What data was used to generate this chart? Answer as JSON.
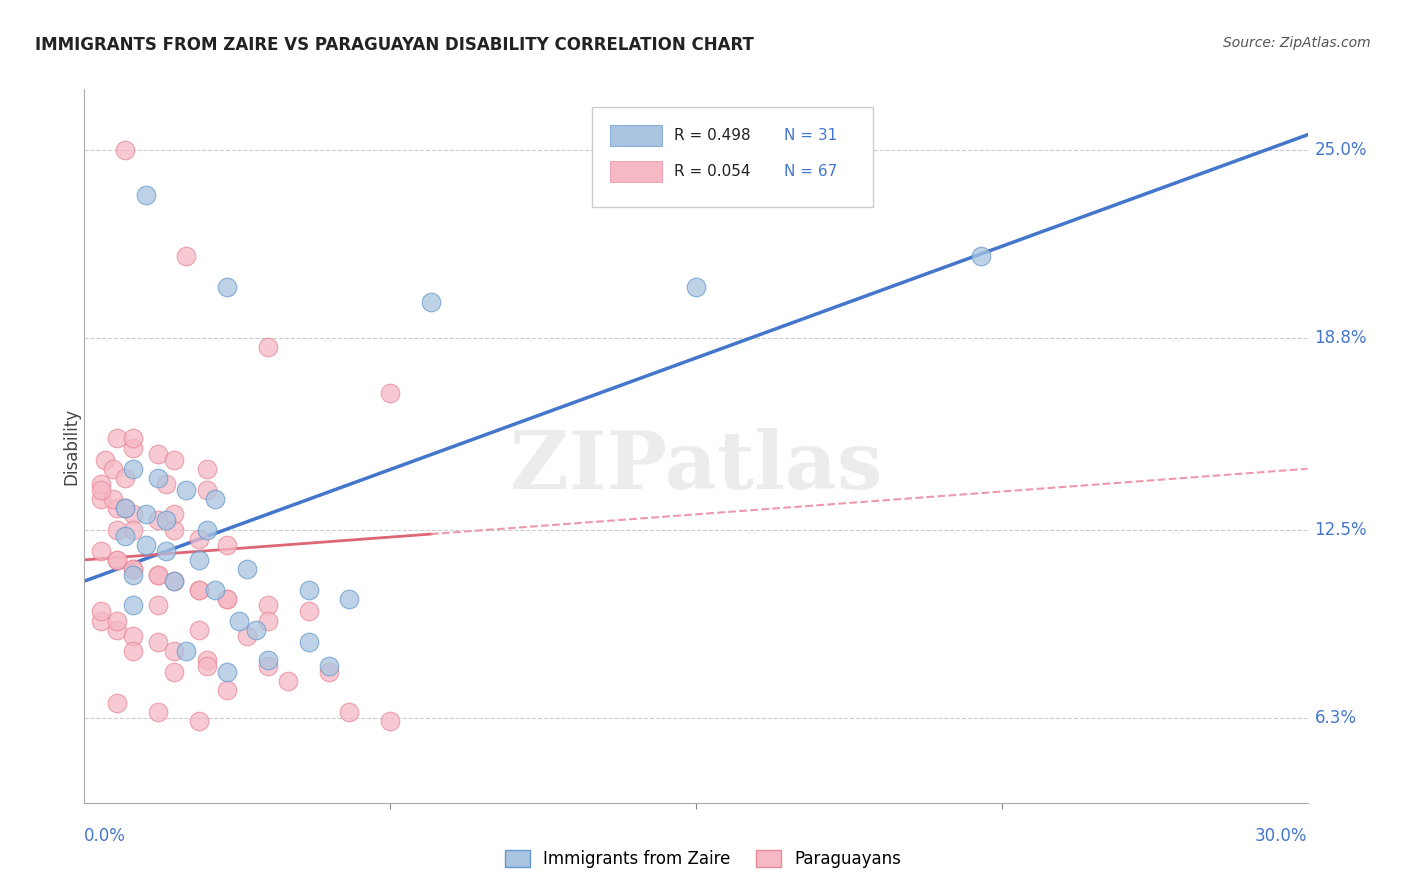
{
  "title": "IMMIGRANTS FROM ZAIRE VS PARAGUAYAN DISABILITY CORRELATION CHART",
  "source": "Source: ZipAtlas.com",
  "ylabel": "Disability",
  "ytick_labels": [
    "6.3%",
    "12.5%",
    "18.8%",
    "25.0%"
  ],
  "ytick_values": [
    6.3,
    12.5,
    18.8,
    25.0
  ],
  "xmin": 0.0,
  "xmax": 30.0,
  "ymin": 3.5,
  "ymax": 27.0,
  "legend_blue_r": "R = 0.498",
  "legend_blue_n": "N = 31",
  "legend_pink_r": "R = 0.054",
  "legend_pink_n": "N = 67",
  "legend_label_blue": "Immigrants from Zaire",
  "legend_label_pink": "Paraguayans",
  "blue_color": "#a8c4e0",
  "pink_color": "#f5b8c4",
  "blue_edge_color": "#6699cc",
  "pink_edge_color": "#e88898",
  "trendline_blue_color": "#4477cc",
  "trendline_pink_solid_color": "#dd6677",
  "trendline_pink_dash_color": "#ee99aa",
  "watermark": "ZIPatlas",
  "blue_trendline_x0": 0.0,
  "blue_trendline_y0": 10.8,
  "blue_trendline_x1": 30.0,
  "blue_trendline_y1": 25.5,
  "pink_trendline_x0": 0.0,
  "pink_trendline_y0": 11.5,
  "pink_trendline_x1": 30.0,
  "pink_trendline_y1": 14.5,
  "pink_solid_end_x": 8.5,
  "blue_dots": [
    [
      1.5,
      23.5
    ],
    [
      3.5,
      20.5
    ],
    [
      8.5,
      20.0
    ],
    [
      15.0,
      20.5
    ],
    [
      1.2,
      14.5
    ],
    [
      1.8,
      14.2
    ],
    [
      2.5,
      13.8
    ],
    [
      3.2,
      13.5
    ],
    [
      1.0,
      13.2
    ],
    [
      1.5,
      13.0
    ],
    [
      2.0,
      12.8
    ],
    [
      3.0,
      12.5
    ],
    [
      1.0,
      12.3
    ],
    [
      1.5,
      12.0
    ],
    [
      2.0,
      11.8
    ],
    [
      2.8,
      11.5
    ],
    [
      4.0,
      11.2
    ],
    [
      1.2,
      11.0
    ],
    [
      2.2,
      10.8
    ],
    [
      3.2,
      10.5
    ],
    [
      5.5,
      10.5
    ],
    [
      6.5,
      10.2
    ],
    [
      1.2,
      10.0
    ],
    [
      3.8,
      9.5
    ],
    [
      4.2,
      9.2
    ],
    [
      5.5,
      8.8
    ],
    [
      2.5,
      8.5
    ],
    [
      4.5,
      8.2
    ],
    [
      6.0,
      8.0
    ],
    [
      3.5,
      7.8
    ],
    [
      22.0,
      21.5
    ]
  ],
  "pink_dots": [
    [
      1.0,
      25.0
    ],
    [
      2.5,
      21.5
    ],
    [
      4.5,
      18.5
    ],
    [
      7.5,
      17.0
    ],
    [
      0.8,
      15.5
    ],
    [
      1.2,
      15.2
    ],
    [
      1.8,
      15.0
    ],
    [
      0.5,
      14.8
    ],
    [
      0.7,
      14.5
    ],
    [
      1.0,
      14.2
    ],
    [
      2.0,
      14.0
    ],
    [
      3.0,
      13.8
    ],
    [
      0.4,
      13.5
    ],
    [
      0.8,
      13.2
    ],
    [
      1.2,
      13.0
    ],
    [
      1.8,
      12.8
    ],
    [
      2.2,
      12.5
    ],
    [
      2.8,
      12.2
    ],
    [
      3.5,
      12.0
    ],
    [
      0.4,
      11.8
    ],
    [
      0.8,
      11.5
    ],
    [
      1.2,
      11.2
    ],
    [
      1.8,
      11.0
    ],
    [
      2.2,
      10.8
    ],
    [
      2.8,
      10.5
    ],
    [
      3.5,
      10.2
    ],
    [
      4.5,
      10.0
    ],
    [
      5.5,
      9.8
    ],
    [
      0.4,
      9.5
    ],
    [
      0.8,
      9.2
    ],
    [
      1.2,
      9.0
    ],
    [
      1.8,
      8.8
    ],
    [
      2.2,
      8.5
    ],
    [
      3.0,
      8.2
    ],
    [
      4.5,
      8.0
    ],
    [
      6.0,
      7.8
    ],
    [
      0.4,
      9.8
    ],
    [
      0.8,
      9.5
    ],
    [
      1.2,
      12.5
    ],
    [
      2.2,
      13.0
    ],
    [
      0.7,
      13.5
    ],
    [
      1.0,
      13.2
    ],
    [
      0.4,
      14.0
    ],
    [
      0.8,
      11.5
    ],
    [
      1.2,
      11.2
    ],
    [
      1.8,
      11.0
    ],
    [
      2.8,
      10.5
    ],
    [
      3.5,
      10.2
    ],
    [
      4.5,
      9.5
    ],
    [
      1.2,
      15.5
    ],
    [
      2.2,
      14.8
    ],
    [
      3.0,
      14.5
    ],
    [
      0.4,
      13.8
    ],
    [
      0.8,
      12.5
    ],
    [
      1.8,
      10.0
    ],
    [
      2.8,
      9.2
    ],
    [
      4.0,
      9.0
    ],
    [
      1.2,
      8.5
    ],
    [
      3.0,
      8.0
    ],
    [
      5.0,
      7.5
    ],
    [
      2.2,
      7.8
    ],
    [
      3.5,
      7.2
    ],
    [
      6.5,
      6.5
    ],
    [
      7.5,
      6.2
    ],
    [
      0.8,
      6.8
    ],
    [
      1.8,
      6.5
    ],
    [
      2.8,
      6.2
    ]
  ]
}
